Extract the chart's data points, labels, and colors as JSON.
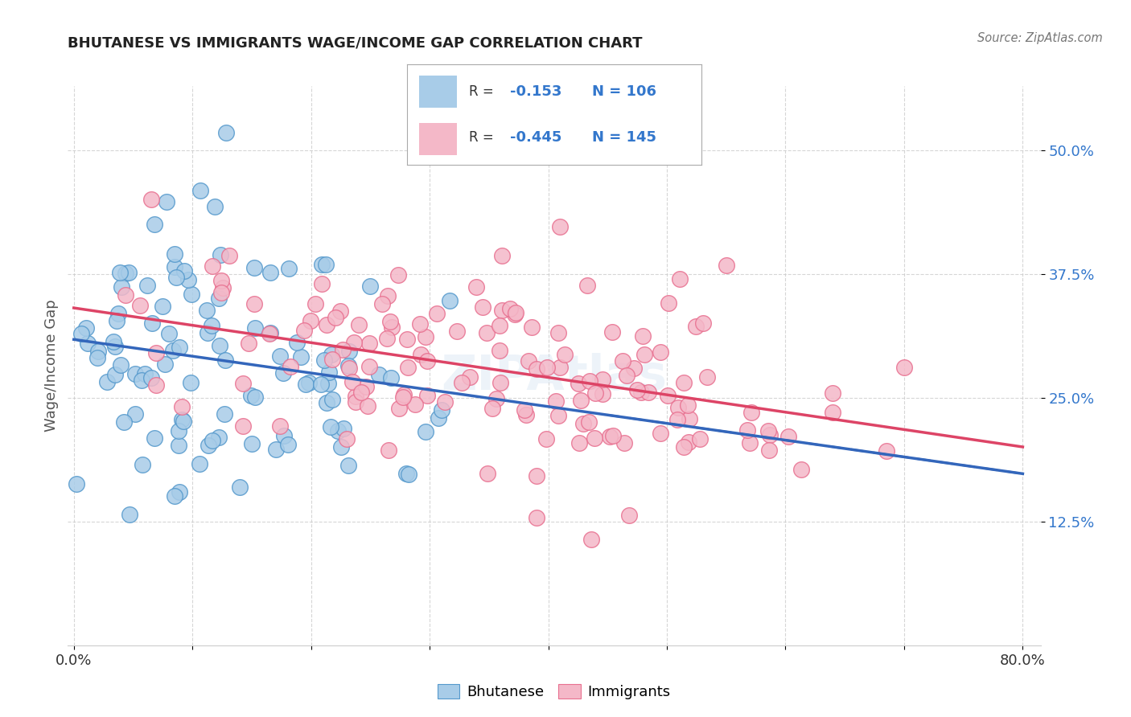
{
  "title": "BHUTANESE VS IMMIGRANTS WAGE/INCOME GAP CORRELATION CHART",
  "source": "Source: ZipAtlas.com",
  "ylabel": "Wage/Income Gap",
  "legend_label1": "Bhutanese",
  "legend_label2": "Immigrants",
  "legend_r1_val": "-0.153",
  "legend_n1": "N = 106",
  "legend_r2_val": "-0.445",
  "legend_n2": "N = 145",
  "blue_color": "#a8cce8",
  "pink_color": "#f4b8c8",
  "blue_edge": "#5599cc",
  "pink_edge": "#e87090",
  "blue_line_color": "#3366bb",
  "pink_line_color": "#dd4466",
  "r1": -0.153,
  "n1": 106,
  "r2": -0.445,
  "n2": 145,
  "ytick_color": "#3377cc",
  "x_min": 0.0,
  "x_max": 0.8
}
